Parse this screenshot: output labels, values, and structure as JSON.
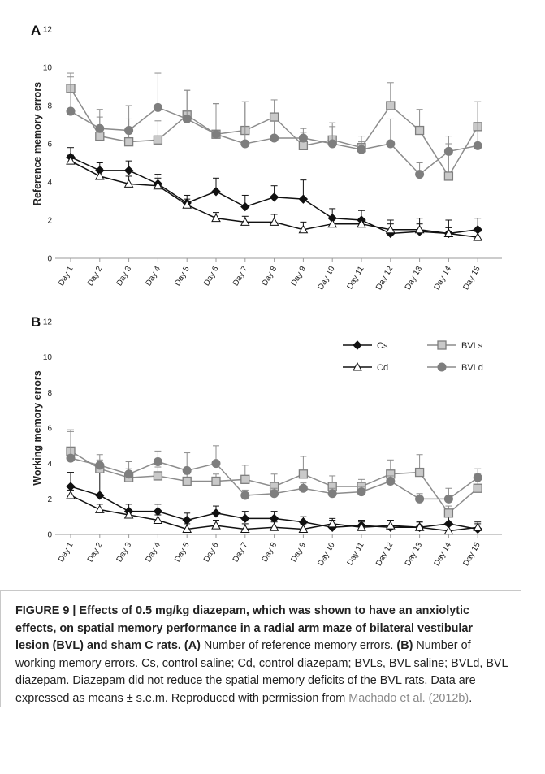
{
  "figure": {
    "caption": {
      "label": "FIGURE 9 | Effects of 0.5 mg/kg diazepam, which was shown to have an anxiolytic effects, on spatial memory performance in a radial arm maze of bilateral vestibular lesion (BVL) and sham C rats.",
      "a_ref": "(A)",
      "a_text": " Number of reference memory errors. ",
      "b_ref": "(B)",
      "b_text": " Number of working memory errors. Cs, control saline; Cd, control diazepam; BVLs, BVL saline; BVLd, BVL diazepam. Diazepam did not reduce the spatial memory deficits of the BVL rats. Data are expressed as means ± s.e.m. Reproduced with permission from ",
      "citation": "Machado et al. (2012b)",
      "end": "."
    }
  },
  "colors": {
    "black": "#111111",
    "gray": "#8c8c8c",
    "gray_fill": "#c9c9c9",
    "gray_dark": "#7e7e7e"
  },
  "chart_data": [
    {
      "type": "line",
      "panel": "A",
      "ylabel": "Reference memory errors",
      "ylim": [
        0,
        12
      ],
      "yticks": [
        "0",
        "2",
        "4",
        "6",
        "8",
        "10",
        "12"
      ],
      "categories": [
        "Day 1",
        "Day 2",
        "Day 3",
        "Day 4",
        "Day 5",
        "Day 6",
        "Day 7",
        "Day 8",
        "Day 9",
        "Day 10",
        "Day 11",
        "Day 12",
        "Day 13",
        "Day 14",
        "Day 15"
      ],
      "series": [
        {
          "key": "cs",
          "values": [
            5.3,
            4.6,
            4.6,
            3.9,
            2.9,
            3.5,
            2.7,
            3.2,
            3.1,
            2.1,
            2.0,
            1.3,
            1.4,
            1.3,
            1.5
          ],
          "err": [
            0.5,
            0.4,
            0.5,
            0.5,
            0.4,
            0.7,
            0.6,
            0.6,
            1.0,
            0.5,
            0.5,
            0.7,
            0.7,
            0.7,
            0.6
          ]
        },
        {
          "key": "cd",
          "values": [
            5.1,
            4.3,
            3.9,
            3.8,
            2.8,
            2.1,
            1.9,
            1.9,
            1.5,
            1.8,
            1.8,
            1.5,
            1.5,
            1.3,
            1.1
          ],
          "err": [
            0.3,
            0.4,
            0.4,
            0.4,
            0.3,
            0.3,
            0.3,
            0.4,
            0.4,
            0.3,
            0.3,
            0.3,
            0.3,
            0.3,
            0.3
          ]
        },
        {
          "key": "bvls",
          "values": [
            8.9,
            6.4,
            6.1,
            6.2,
            7.5,
            6.5,
            6.7,
            7.4,
            5.9,
            6.2,
            5.8,
            8.0,
            6.7,
            4.3,
            6.9
          ],
          "err": [
            0.8,
            1.4,
            1.2,
            1.0,
            1.3,
            1.6,
            1.5,
            0.9,
            0.9,
            0.9,
            0.6,
            1.2,
            1.1,
            1.7,
            1.3
          ]
        },
        {
          "key": "bvld",
          "values": [
            7.7,
            6.8,
            6.7,
            7.9,
            7.3,
            6.5,
            6.0,
            6.3,
            6.3,
            6.0,
            5.7,
            6.0,
            4.4,
            5.6,
            5.9
          ],
          "err": [
            1.8,
            0.6,
            1.3,
            1.8,
            1.5,
            1.6,
            2.2,
            0.9,
            0.3,
            0.9,
            0.4,
            1.3,
            0.6,
            0.8,
            2.3
          ]
        }
      ]
    },
    {
      "type": "line",
      "panel": "B",
      "ylabel": "Working memory errors",
      "ylim": [
        0,
        12
      ],
      "yticks": [
        "0",
        "2",
        "4",
        "6",
        "8",
        "10",
        "12"
      ],
      "categories": [
        "Day 1",
        "Day 2",
        "Day 3",
        "Day 4",
        "Day 5",
        "Day 6",
        "Day 7",
        "Day 8",
        "Day 9",
        "Day 10",
        "Day 11",
        "Day 12",
        "Day 13",
        "Day 14",
        "Day 15"
      ],
      "legend": {
        "placement": "top-right",
        "entries": [
          {
            "key": "cs",
            "label": "Cs"
          },
          {
            "key": "bvls",
            "label": "BVLs"
          },
          {
            "key": "cd",
            "label": "Cd"
          },
          {
            "key": "bvld",
            "label": "BVLd"
          }
        ]
      },
      "series": [
        {
          "key": "cs",
          "values": [
            2.7,
            2.2,
            1.3,
            1.3,
            0.8,
            1.2,
            0.9,
            0.9,
            0.7,
            0.4,
            0.5,
            0.4,
            0.4,
            0.6,
            0.3
          ],
          "err": [
            0.8,
            1.4,
            0.4,
            0.4,
            0.4,
            0.4,
            0.4,
            0.4,
            0.3,
            0.4,
            0.3,
            0.4,
            0.3,
            0.5,
            0.3
          ]
        },
        {
          "key": "cd",
          "values": [
            2.2,
            1.4,
            1.1,
            0.8,
            0.3,
            0.5,
            0.3,
            0.4,
            0.3,
            0.6,
            0.4,
            0.5,
            0.4,
            0.2,
            0.4
          ],
          "err": [
            0.3,
            0.3,
            0.3,
            0.3,
            0.3,
            0.3,
            0.3,
            0.3,
            0.3,
            0.3,
            0.3,
            0.3,
            0.3,
            0.3,
            0.3
          ]
        },
        {
          "key": "bvls",
          "values": [
            4.7,
            3.7,
            3.2,
            3.3,
            3.0,
            3.0,
            3.1,
            2.7,
            3.4,
            2.7,
            2.7,
            3.4,
            3.5,
            1.2,
            2.6
          ],
          "err": [
            1.2,
            0.5,
            0.5,
            0.5,
            0.4,
            0.4,
            0.8,
            0.7,
            1.0,
            0.6,
            0.4,
            0.8,
            1.0,
            0.4,
            0.8
          ]
        },
        {
          "key": "bvld",
          "values": [
            4.3,
            3.9,
            3.4,
            4.1,
            3.6,
            4.0,
            2.2,
            2.3,
            2.6,
            2.3,
            2.4,
            3.0,
            2.0,
            2.0,
            3.2
          ],
          "err": [
            1.5,
            0.6,
            0.7,
            0.6,
            1.0,
            1.0,
            0.3,
            0.3,
            0.3,
            0.3,
            0.3,
            0.3,
            0.3,
            0.6,
            0.5
          ]
        }
      ]
    }
  ]
}
